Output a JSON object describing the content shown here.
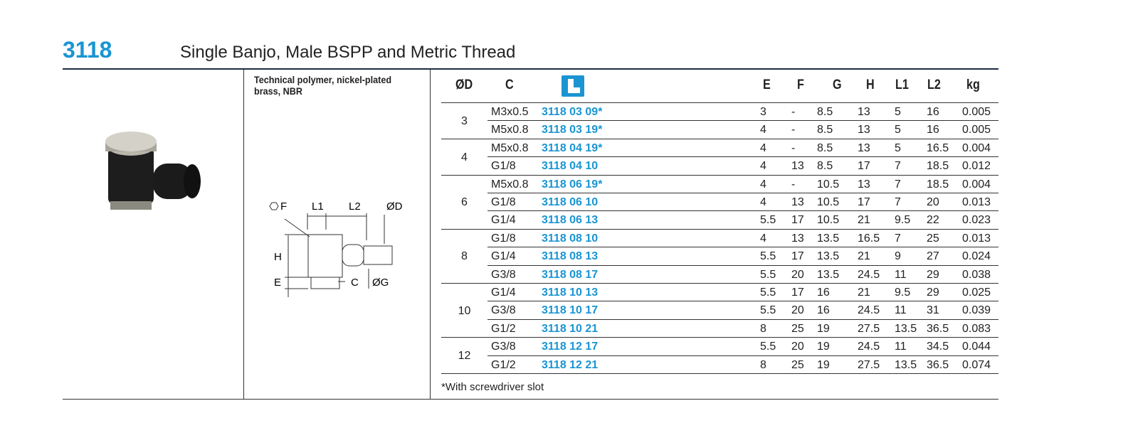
{
  "header": {
    "code": "3118",
    "title": "Single Banjo, Male BSPP and Metric Thread"
  },
  "material": "Technical polymer, nickel-plated brass, NBR",
  "diagram": {
    "labels": {
      "F": "F",
      "L1": "L1",
      "L2": "L2",
      "D": "ØD",
      "H": "H",
      "E": "E",
      "C": "C",
      "G": "ØG"
    }
  },
  "table": {
    "headers": [
      "ØD",
      "C",
      "E",
      "F",
      "G",
      "H",
      "L1",
      "L2",
      "kg"
    ],
    "groups": [
      {
        "d": "3",
        "rows": [
          [
            "M3x0.5",
            "3118 03 09*",
            "3",
            "-",
            "8.5",
            "13",
            "5",
            "16",
            "0.005"
          ],
          [
            "M5x0.8",
            "3118 03 19*",
            "4",
            "-",
            "8.5",
            "13",
            "5",
            "16",
            "0.005"
          ]
        ]
      },
      {
        "d": "4",
        "rows": [
          [
            "M5x0.8",
            "3118 04 19*",
            "4",
            "-",
            "8.5",
            "13",
            "5",
            "16.5",
            "0.004"
          ],
          [
            "G1/8",
            "3118 04 10",
            "4",
            "13",
            "8.5",
            "17",
            "7",
            "18.5",
            "0.012"
          ]
        ]
      },
      {
        "d": "6",
        "rows": [
          [
            "M5x0.8",
            "3118 06 19*",
            "4",
            "-",
            "10.5",
            "13",
            "7",
            "18.5",
            "0.004"
          ],
          [
            "G1/8",
            "3118 06 10",
            "4",
            "13",
            "10.5",
            "17",
            "7",
            "20",
            "0.013"
          ],
          [
            "G1/4",
            "3118 06 13",
            "5.5",
            "17",
            "10.5",
            "21",
            "9.5",
            "22",
            "0.023"
          ]
        ]
      },
      {
        "d": "8",
        "rows": [
          [
            "G1/8",
            "3118 08 10",
            "4",
            "13",
            "13.5",
            "16.5",
            "7",
            "25",
            "0.013"
          ],
          [
            "G1/4",
            "3118 08 13",
            "5.5",
            "17",
            "13.5",
            "21",
            "9",
            "27",
            "0.024"
          ],
          [
            "G3/8",
            "3118 08 17",
            "5.5",
            "20",
            "13.5",
            "24.5",
            "11",
            "29",
            "0.038"
          ]
        ]
      },
      {
        "d": "10",
        "rows": [
          [
            "G1/4",
            "3118 10 13",
            "5.5",
            "17",
            "16",
            "21",
            "9.5",
            "29",
            "0.025"
          ],
          [
            "G3/8",
            "3118 10 17",
            "5.5",
            "20",
            "16",
            "24.5",
            "11",
            "31",
            "0.039"
          ],
          [
            "G1/2",
            "3118 10 21",
            "8",
            "25",
            "19",
            "27.5",
            "13.5",
            "36.5",
            "0.083"
          ]
        ]
      },
      {
        "d": "12",
        "rows": [
          [
            "G3/8",
            "3118 12 17",
            "5.5",
            "20",
            "19",
            "24.5",
            "11",
            "34.5",
            "0.044"
          ],
          [
            "G1/2",
            "3118 12 21",
            "8",
            "25",
            "19",
            "27.5",
            "13.5",
            "36.5",
            "0.074"
          ]
        ]
      }
    ]
  },
  "footnote": "*With screwdriver slot"
}
